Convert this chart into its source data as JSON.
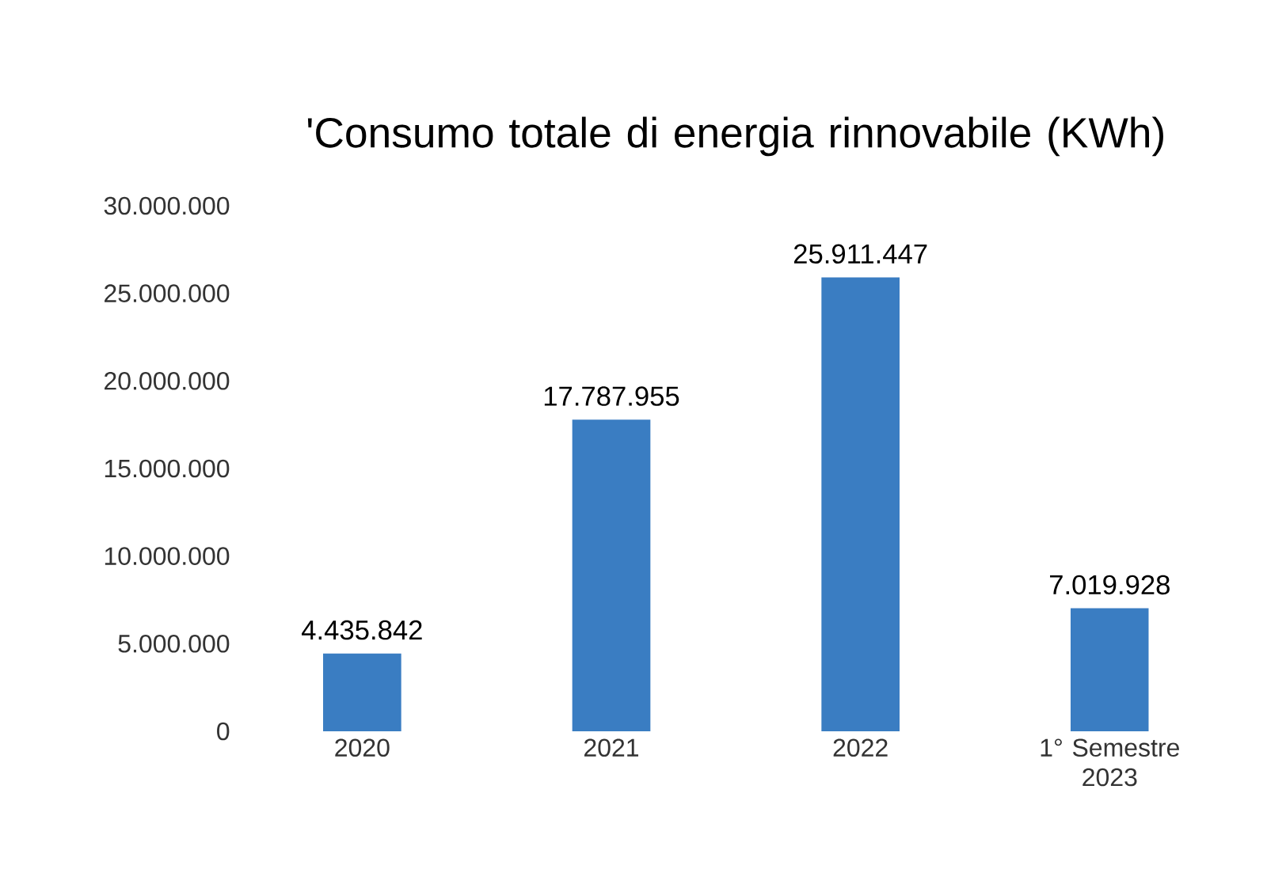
{
  "chart_data": {
    "type": "bar",
    "title": "'Consumo totale di energia rinnovabile (KWh)",
    "categories": [
      "2020",
      "2021",
      "2022",
      "1° Semestre 2023"
    ],
    "values": [
      4435842,
      17787955,
      25911447,
      7019928
    ],
    "value_labels": [
      "4.435.842",
      "17.787.955",
      "25.911.447",
      "7.019.928"
    ],
    "color": "#3a7dc2",
    "ylim": [
      0,
      30000000
    ],
    "yticks": [
      0,
      {
        "value": 5000000,
        "label": "5.000.000"
      },
      {
        "value": 10000000,
        "label": "10.000.000"
      },
      {
        "value": 15000000,
        "label": "15.000.000"
      },
      {
        "value": 20000000,
        "label": "20.000.000"
      },
      {
        "value": 25000000,
        "label": "25.000.000"
      },
      {
        "value": 30000000,
        "label": "30.000.000"
      }
    ],
    "grid": false
  }
}
